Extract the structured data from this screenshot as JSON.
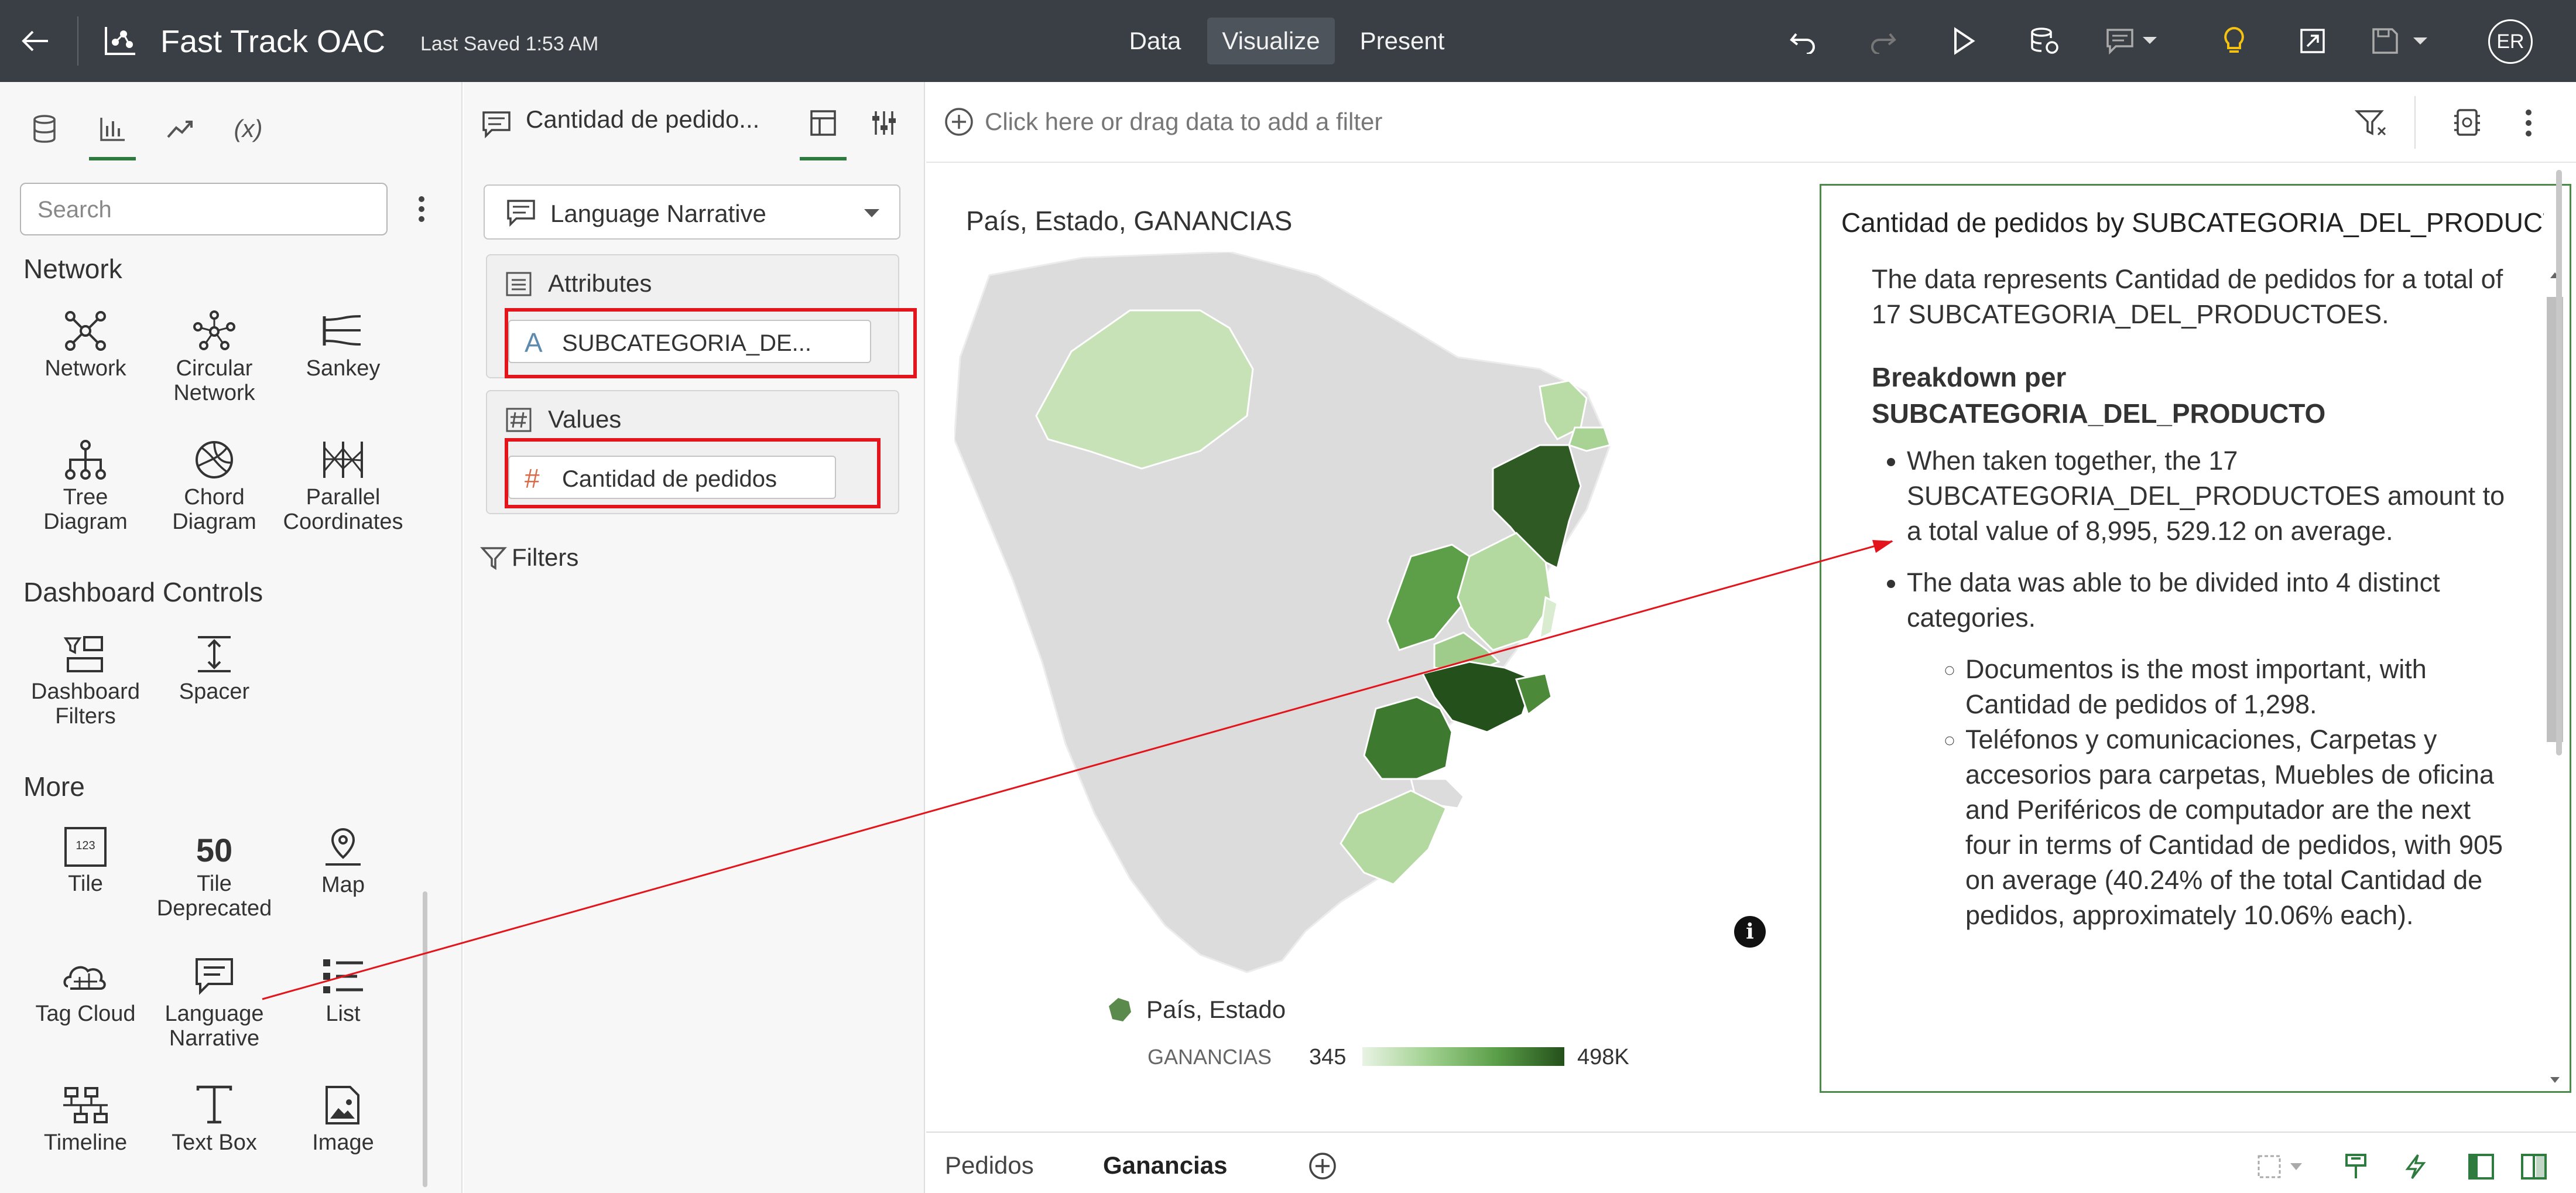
{
  "header": {
    "title": "Fast Track OAC",
    "saved": "Last Saved 1:53 AM",
    "nav": [
      "Data",
      "Visualize",
      "Present"
    ],
    "active_nav": "Visualize",
    "avatar": "ER",
    "colors": {
      "bar": "#3a3f45",
      "active": "#4e545b",
      "bulb": "#f5c211"
    },
    "toolbar_icons": [
      "undo-icon",
      "redo-icon",
      "play-icon",
      "refresh-data-icon",
      "comment-icon",
      "insights-bulb-icon",
      "export-icon",
      "save-icon"
    ]
  },
  "left": {
    "tabs": [
      "data-icon",
      "visualizations-icon",
      "analytics-icon",
      "(x)"
    ],
    "search_placeholder": "Search",
    "sections": {
      "network": "Network",
      "controls": "Dashboard Controls",
      "more": "More"
    },
    "network_items": [
      "Network",
      "Circular Network",
      "Sankey",
      "Tree Diagram",
      "Chord Diagram",
      "Parallel Coordinates"
    ],
    "control_items": [
      "Dashboard Filters",
      "Spacer"
    ],
    "more_items": [
      "Tile",
      "Tile Deprecated",
      "Map",
      "Tag Cloud",
      "Language Narrative",
      "List",
      "Timeline",
      "Text Box",
      "Image"
    ],
    "tile_glyph": "123",
    "tile_dep_glyph": "50"
  },
  "grammar": {
    "title": "Cantidad de pedido...",
    "viz_type": "Language Narrative",
    "attributes_label": "Attributes",
    "attribute_pill": "SUBCATEGORIA_DE...",
    "attribute_glyph": "A",
    "values_label": "Values",
    "value_pill": "Cantidad de pedidos",
    "value_glyph": "#",
    "filters_label": "Filters"
  },
  "canvas": {
    "filter_placeholder": "Click here or drag data to add a filter",
    "map": {
      "title": "País, Estado, GANANCIAS",
      "legend_title": "País, Estado",
      "legend_measure": "GANANCIAS",
      "legend_min": "345",
      "legend_max": "498K",
      "colors": {
        "low": "#e9f3e4",
        "high": "#24501b",
        "land": "#dcdcdc"
      }
    },
    "narrative": {
      "title": "Cantidad de pedidos by SUBCATEGORIA_DEL_PRODUCTO",
      "intro": "The data represents Cantidad de pedidos for a total of 17 SUBCATEGORIA_DEL_PRODUCTOES.",
      "heading": "Breakdown per SUBCATEGORIA_DEL_PRODUCTO",
      "bullet1": "When taken together, the 17 SUBCATEGORIA_DEL_PRODUCTOES amount to a total value of 8,995, 529.12 on average.",
      "bullet2": "The data was able to be divided into 4 distinct categories.",
      "sub1": "Documentos is the most important, with Cantidad de pedidos of 1,298.",
      "sub2": "Teléfonos y comunicaciones, Carpetas y accesorios para carpetas, Muebles de oficina and Periféricos de computador are the next four in terms of Cantidad de pedidos, with 905 on average (40.24% of the total Cantidad de pedidos, approximately 10.06% each)."
    },
    "info_glyph": "i"
  },
  "bottom": {
    "tabs": [
      "Pedidos",
      "Ganancias"
    ],
    "active_tab": "Ganancias"
  }
}
